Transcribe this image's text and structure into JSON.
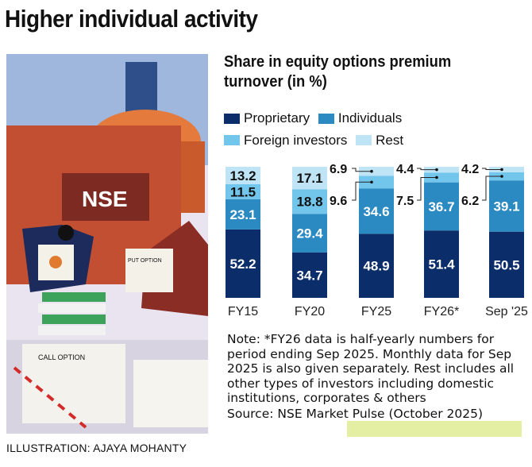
{
  "headline": "Higher individual activity",
  "illustration": {
    "credit": "ILLUSTRATION: AJAYA MOHANTY",
    "sign_text": "NSE",
    "paper_text_1": "PUT OPTION",
    "paper_text_2": "CALL OPTION"
  },
  "chart_data": {
    "type": "bar",
    "stacked": true,
    "title": "Share in equity options premium turnover (in %)",
    "categories": [
      "FY15",
      "FY20",
      "FY25",
      "FY26*",
      "Sep '25"
    ],
    "series": [
      {
        "name": "Proprietary",
        "color": "#0b2e6b",
        "values": [
          52.2,
          34.7,
          48.9,
          51.4,
          50.5
        ]
      },
      {
        "name": "Individuals",
        "color": "#2b8ac2",
        "values": [
          23.1,
          29.4,
          34.6,
          36.7,
          39.1
        ]
      },
      {
        "name": "Foreign investors",
        "color": "#72c6ec",
        "values": [
          11.5,
          18.8,
          9.6,
          7.5,
          6.2
        ]
      },
      {
        "name": "Rest",
        "color": "#bfe4f6",
        "values": [
          13.2,
          17.1,
          6.9,
          4.4,
          4.2
        ]
      }
    ],
    "ylim": [
      0,
      100
    ],
    "xlabel": "",
    "ylabel": "",
    "legend": "top"
  },
  "note": "Note: *FY26 data is half-yearly numbers for period ending Sep 2025. Monthly data for Sep 2025 is also given separately. Rest includes all other types of investors including domestic institutions, corporates & others",
  "source": "Source: NSE Market Pulse (October 2025)"
}
